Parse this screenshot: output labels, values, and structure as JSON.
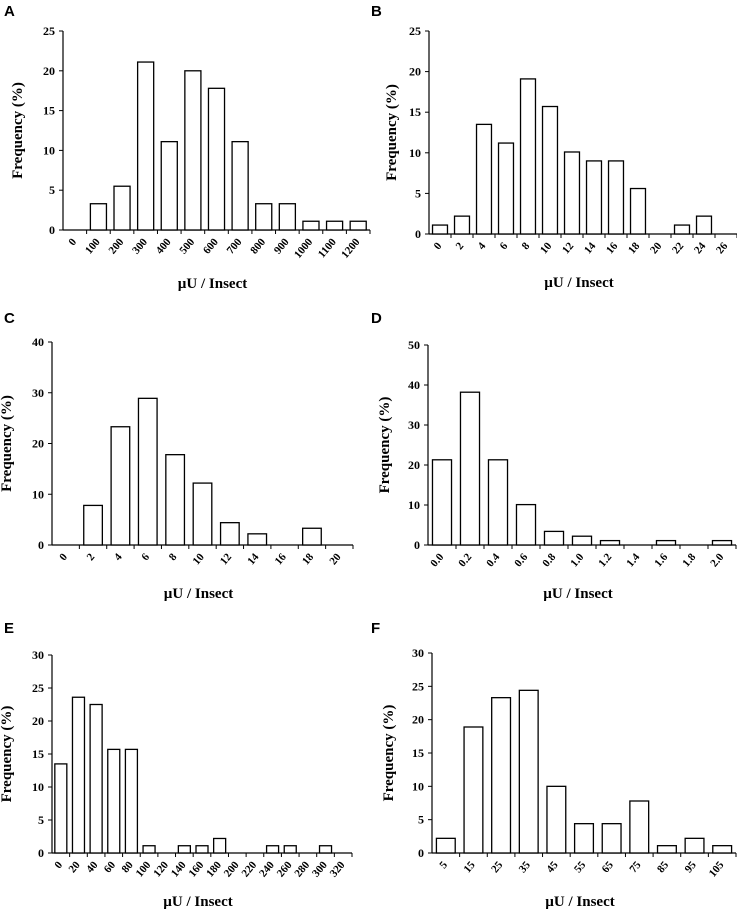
{
  "chart_data": [
    {
      "type": "bar",
      "panel": "A",
      "ylabel": "Frequency (%)",
      "xlabel": "µU / Insect",
      "ylim": [
        0,
        25
      ],
      "yticks": [
        "0",
        "5",
        "10",
        "15",
        "20",
        "25"
      ],
      "categories": [
        "0",
        "100",
        "200",
        "300",
        "400",
        "500",
        "600",
        "700",
        "800",
        "900",
        "1000",
        "1100",
        "1200"
      ],
      "values": [
        0,
        3.3,
        5.5,
        21.1,
        11.1,
        20.0,
        17.8,
        11.1,
        3.3,
        3.3,
        1.1,
        1.1,
        1.1
      ]
    },
    {
      "type": "bar",
      "panel": "B",
      "ylabel": "Frequency (%)",
      "xlabel": "µU / Insect",
      "ylim": [
        0,
        25
      ],
      "yticks": [
        "0",
        "5",
        "10",
        "15",
        "20",
        "25"
      ],
      "categories": [
        "0",
        "2",
        "4",
        "6",
        "8",
        "10",
        "12",
        "14",
        "16",
        "18",
        "20",
        "22",
        "24",
        "26"
      ],
      "values": [
        1.1,
        2.2,
        13.5,
        11.2,
        19.1,
        15.7,
        10.1,
        9.0,
        9.0,
        5.6,
        0,
        1.1,
        2.2,
        0
      ]
    },
    {
      "type": "bar",
      "panel": "C",
      "ylabel": "Frequency (%)",
      "xlabel": "µU / Insect",
      "ylim": [
        0,
        40
      ],
      "yticks": [
        "0",
        "10",
        "20",
        "30",
        "40"
      ],
      "categories": [
        "0",
        "2",
        "4",
        "6",
        "8",
        "10",
        "12",
        "14",
        "16",
        "18",
        "20"
      ],
      "values": [
        0,
        7.8,
        23.3,
        28.9,
        17.8,
        12.2,
        4.4,
        2.2,
        0,
        3.3,
        0
      ]
    },
    {
      "type": "bar",
      "panel": "D",
      "ylabel": "Frequency (%)",
      "xlabel": "µU / Insect",
      "ylim": [
        0,
        50
      ],
      "yticks": [
        "0",
        "10",
        "20",
        "30",
        "40",
        "50"
      ],
      "categories": [
        "0.0",
        "0.2",
        "0.4",
        "0.6",
        "0.8",
        "1.0",
        "1.2",
        "1.4",
        "1.6",
        "1.8",
        "2.0"
      ],
      "values": [
        21.3,
        38.2,
        21.3,
        10.1,
        3.4,
        2.2,
        1.1,
        0,
        1.1,
        0,
        1.1
      ]
    },
    {
      "type": "bar",
      "panel": "E",
      "ylabel": "Frequency (%)",
      "xlabel": "µU / Insect",
      "ylim": [
        0,
        30
      ],
      "yticks": [
        "0",
        "5",
        "10",
        "15",
        "20",
        "25",
        "30"
      ],
      "categories": [
        "0",
        "20",
        "40",
        "60",
        "80",
        "100",
        "120",
        "140",
        "160",
        "180",
        "200",
        "220",
        "240",
        "260",
        "280",
        "300",
        "320"
      ],
      "values": [
        13.5,
        23.6,
        22.5,
        15.7,
        15.7,
        1.1,
        0,
        1.1,
        1.1,
        2.2,
        0,
        0,
        1.1,
        1.1,
        0,
        1.1,
        0
      ]
    },
    {
      "type": "bar",
      "panel": "F",
      "ylabel": "Frequency (%)",
      "xlabel": "µU / Insect",
      "ylim": [
        0,
        30
      ],
      "yticks": [
        "0",
        "5",
        "10",
        "15",
        "20",
        "25",
        "30"
      ],
      "categories": [
        "5",
        "15",
        "25",
        "35",
        "45",
        "55",
        "65",
        "75",
        "85",
        "95",
        "105"
      ],
      "values": [
        2.2,
        18.9,
        23.3,
        24.4,
        10.0,
        4.4,
        4.4,
        7.8,
        1.1,
        2.2,
        1.1
      ]
    }
  ]
}
